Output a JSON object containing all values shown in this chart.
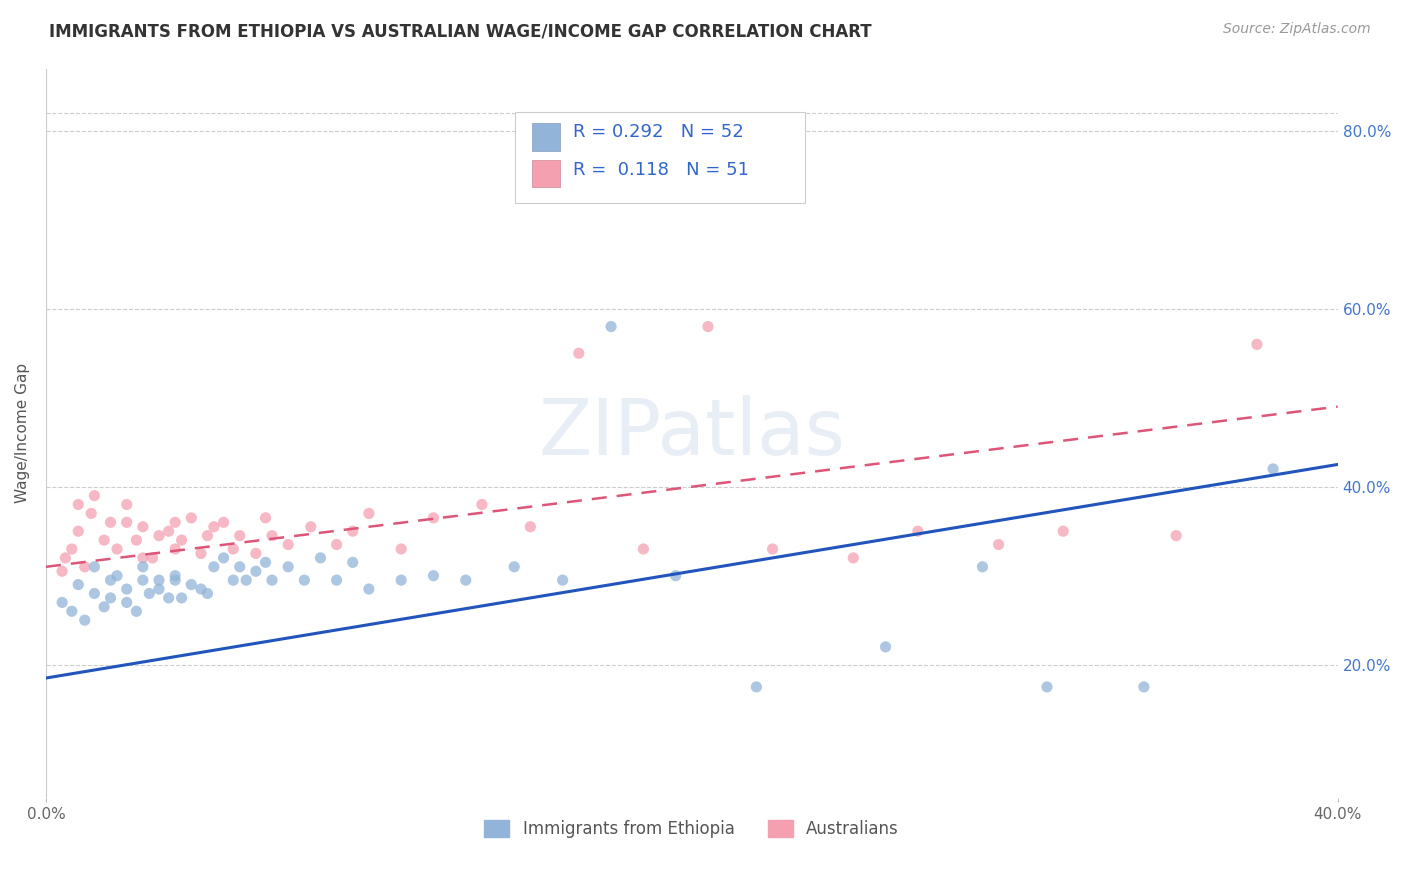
{
  "title": "IMMIGRANTS FROM ETHIOPIA VS AUSTRALIAN WAGE/INCOME GAP CORRELATION CHART",
  "source": "Source: ZipAtlas.com",
  "ylabel": "Wage/Income Gap",
  "legend_label1": "Immigrants from Ethiopia",
  "legend_label2": "Australians",
  "R1": 0.292,
  "N1": 52,
  "R2": 0.118,
  "N2": 51,
  "blue_color": "#92B4D8",
  "pink_color": "#F4A0B0",
  "blue_line_color": "#2255BB",
  "pink_line_color": "#DD5577",
  "xlim": [
    0.0,
    0.4
  ],
  "ylim": [
    0.05,
    0.87
  ],
  "yticks": [
    0.2,
    0.4,
    0.6,
    0.8
  ],
  "ytick_labels": [
    "20.0%",
    "40.0%",
    "60.0%",
    "80.0%"
  ],
  "blue_scatter_x": [
    0.005,
    0.008,
    0.01,
    0.012,
    0.015,
    0.015,
    0.018,
    0.02,
    0.02,
    0.022,
    0.025,
    0.025,
    0.028,
    0.03,
    0.03,
    0.032,
    0.035,
    0.035,
    0.038,
    0.04,
    0.04,
    0.042,
    0.045,
    0.048,
    0.05,
    0.052,
    0.055,
    0.058,
    0.06,
    0.062,
    0.065,
    0.068,
    0.07,
    0.075,
    0.08,
    0.085,
    0.09,
    0.095,
    0.1,
    0.11,
    0.12,
    0.13,
    0.145,
    0.16,
    0.175,
    0.195,
    0.22,
    0.26,
    0.29,
    0.31,
    0.34,
    0.38
  ],
  "blue_scatter_y": [
    0.27,
    0.26,
    0.29,
    0.25,
    0.28,
    0.31,
    0.265,
    0.295,
    0.275,
    0.3,
    0.27,
    0.285,
    0.26,
    0.295,
    0.31,
    0.28,
    0.285,
    0.295,
    0.275,
    0.295,
    0.3,
    0.275,
    0.29,
    0.285,
    0.28,
    0.31,
    0.32,
    0.295,
    0.31,
    0.295,
    0.305,
    0.315,
    0.295,
    0.31,
    0.295,
    0.32,
    0.295,
    0.315,
    0.285,
    0.295,
    0.3,
    0.295,
    0.31,
    0.295,
    0.58,
    0.3,
    0.175,
    0.22,
    0.31,
    0.175,
    0.175,
    0.42
  ],
  "pink_scatter_x": [
    0.005,
    0.006,
    0.008,
    0.01,
    0.01,
    0.012,
    0.014,
    0.015,
    0.018,
    0.02,
    0.022,
    0.025,
    0.025,
    0.028,
    0.03,
    0.03,
    0.033,
    0.035,
    0.038,
    0.04,
    0.04,
    0.042,
    0.045,
    0.048,
    0.05,
    0.052,
    0.055,
    0.058,
    0.06,
    0.065,
    0.068,
    0.07,
    0.075,
    0.082,
    0.09,
    0.095,
    0.1,
    0.11,
    0.12,
    0.135,
    0.15,
    0.165,
    0.185,
    0.205,
    0.225,
    0.25,
    0.27,
    0.295,
    0.315,
    0.35,
    0.375
  ],
  "pink_scatter_y": [
    0.305,
    0.32,
    0.33,
    0.35,
    0.38,
    0.31,
    0.37,
    0.39,
    0.34,
    0.36,
    0.33,
    0.36,
    0.38,
    0.34,
    0.32,
    0.355,
    0.32,
    0.345,
    0.35,
    0.33,
    0.36,
    0.34,
    0.365,
    0.325,
    0.345,
    0.355,
    0.36,
    0.33,
    0.345,
    0.325,
    0.365,
    0.345,
    0.335,
    0.355,
    0.335,
    0.35,
    0.37,
    0.33,
    0.365,
    0.38,
    0.355,
    0.55,
    0.33,
    0.58,
    0.33,
    0.32,
    0.35,
    0.335,
    0.35,
    0.345,
    0.56
  ],
  "blue_line_x0": 0.0,
  "blue_line_y0": 0.185,
  "blue_line_x1": 0.4,
  "blue_line_y1": 0.425,
  "pink_line_x0": 0.0,
  "pink_line_y0": 0.31,
  "pink_line_x1": 0.4,
  "pink_line_y1": 0.49
}
